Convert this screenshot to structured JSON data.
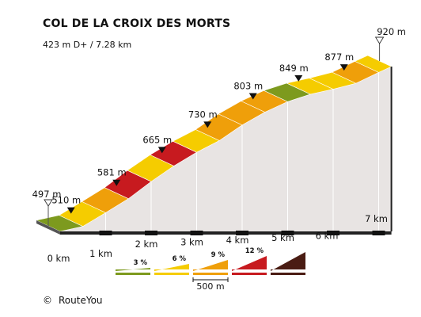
{
  "chart_data": {
    "type": "area",
    "title": "COL DE LA CROIX DES MORTS",
    "subtitle": "423 m D+ / 7.28 km",
    "x": [
      0,
      0.5,
      1,
      1.5,
      2,
      2.5,
      3,
      3.5,
      4,
      4.5,
      5,
      5.5,
      6,
      6.5,
      7,
      7.28
    ],
    "elevation": [
      497,
      510,
      545,
      581,
      625,
      665,
      700,
      730,
      770,
      803,
      830,
      849,
      862,
      877,
      905,
      920
    ],
    "gradient_class": [
      "3%",
      "6%",
      "9%",
      "12%",
      "6%",
      "12%",
      "6%",
      "9%",
      "9%",
      "9%",
      "3%",
      "6%",
      "6%",
      "9%",
      "6%"
    ],
    "elevation_labels": [
      {
        "x": 0,
        "label": "497 m",
        "marker": "start"
      },
      {
        "x": 0.5,
        "label": "510 m",
        "marker": "point"
      },
      {
        "x": 1.5,
        "label": "581 m",
        "marker": "point"
      },
      {
        "x": 2.5,
        "label": "665 m",
        "marker": "point"
      },
      {
        "x": 3.5,
        "label": "730 m",
        "marker": "point"
      },
      {
        "x": 4.5,
        "label": "803 m",
        "marker": "point"
      },
      {
        "x": 5.5,
        "label": "849 m",
        "marker": "point"
      },
      {
        "x": 6.5,
        "label": "877 m",
        "marker": "point"
      },
      {
        "x": 7.28,
        "label": "920 m",
        "marker": "end"
      }
    ],
    "x_ticks": [
      {
        "x": 0,
        "label": "0 km"
      },
      {
        "x": 1,
        "label": "1 km"
      },
      {
        "x": 2,
        "label": "2 km"
      },
      {
        "x": 3,
        "label": "3 km"
      },
      {
        "x": 4,
        "label": "4 km"
      },
      {
        "x": 5,
        "label": "5 km"
      },
      {
        "x": 6,
        "label": "6 km"
      },
      {
        "x": 7,
        "label": "7 km"
      }
    ],
    "legend": {
      "items": [
        {
          "label": "3 %",
          "color": "#7d9a1e"
        },
        {
          "label": "6 %",
          "color": "#f5cc00"
        },
        {
          "label": "9 %",
          "color": "#ef9f0a"
        },
        {
          "label": "12 %",
          "color": "#c71a1f"
        },
        {
          "label": "",
          "color": "#4a1c13"
        }
      ],
      "scale_label": "500 m"
    },
    "colors": {
      "3%": "#7d9a1e",
      "6%": "#f5cc00",
      "9%": "#ef9f0a",
      "12%": "#c71a1f",
      "wall": "#e8e4e3",
      "base": "#222222"
    }
  },
  "credit": {
    "symbol": "©",
    "text": "RouteYou"
  }
}
